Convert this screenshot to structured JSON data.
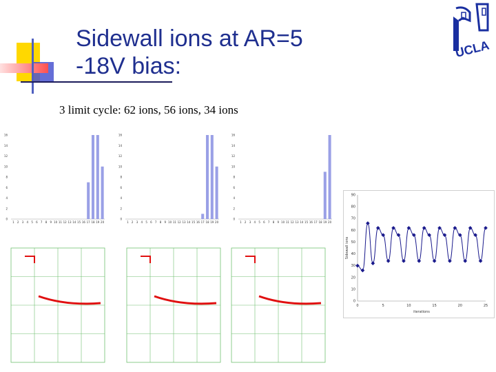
{
  "slide": {
    "title_line1": "Sidewall ions at AR=5",
    "title_line2": "-18V bias:",
    "subtitle": "3 limit cycle:  62 ions, 56 ions, 34 ions",
    "logo_text": "UCLA",
    "colors": {
      "title": "#1f2f8f",
      "bars": "#9aa0e6",
      "curve": "#e01010",
      "line": "#1a1a8c",
      "grid_green": "#70c070"
    }
  },
  "chart_data": [
    {
      "type": "bar",
      "categories": [
        "1",
        "2",
        "3",
        "4",
        "5",
        "6",
        "7",
        "8",
        "9",
        "10",
        "11",
        "12",
        "13",
        "14",
        "15",
        "16",
        "17",
        "18",
        "19",
        "20"
      ],
      "values": [
        0,
        0,
        0,
        0,
        0,
        0,
        0,
        0,
        0,
        0,
        0,
        0,
        0,
        0,
        0,
        0,
        7,
        16,
        16,
        10
      ],
      "ylim": [
        0,
        16
      ]
    },
    {
      "type": "bar",
      "categories": [
        "1",
        "2",
        "3",
        "4",
        "5",
        "6",
        "7",
        "8",
        "9",
        "10",
        "11",
        "12",
        "13",
        "14",
        "15",
        "16",
        "17",
        "18",
        "19",
        "20"
      ],
      "values": [
        0,
        0,
        0,
        0,
        0,
        0,
        0,
        0,
        0,
        0,
        0,
        0,
        0,
        0,
        0,
        0,
        1,
        16,
        16,
        10
      ],
      "ylim": [
        0,
        16
      ]
    },
    {
      "type": "bar",
      "categories": [
        "1",
        "2",
        "3",
        "4",
        "5",
        "6",
        "7",
        "8",
        "9",
        "10",
        "11",
        "12",
        "13",
        "14",
        "15",
        "16",
        "17",
        "18",
        "19",
        "20"
      ],
      "values": [
        0,
        0,
        0,
        0,
        0,
        0,
        0,
        0,
        0,
        0,
        0,
        0,
        0,
        0,
        0,
        0,
        0,
        0,
        9,
        16
      ],
      "ylim": [
        0,
        16
      ]
    },
    {
      "type": "line",
      "xlabel": "iterations",
      "ylabel": "Sidewall ions",
      "xticks": [
        "0",
        "5",
        "10",
        "15",
        "20",
        "25"
      ],
      "yticks": [
        "0",
        "10",
        "20",
        "30",
        "40",
        "50",
        "60",
        "70",
        "80",
        "90"
      ],
      "xlim": [
        0,
        25
      ],
      "ylim": [
        0,
        90
      ],
      "x": [
        0,
        1,
        2,
        3,
        4,
        5,
        6,
        7,
        8,
        9,
        10,
        11,
        12,
        13,
        14,
        15,
        16,
        17,
        18,
        19,
        20,
        21,
        22,
        23,
        24,
        25
      ],
      "y": [
        30,
        26,
        66,
        32,
        62,
        56,
        34,
        62,
        56,
        34,
        62,
        56,
        34,
        62,
        56,
        34,
        62,
        56,
        34,
        62,
        56,
        34,
        62,
        56,
        34,
        62
      ]
    }
  ]
}
